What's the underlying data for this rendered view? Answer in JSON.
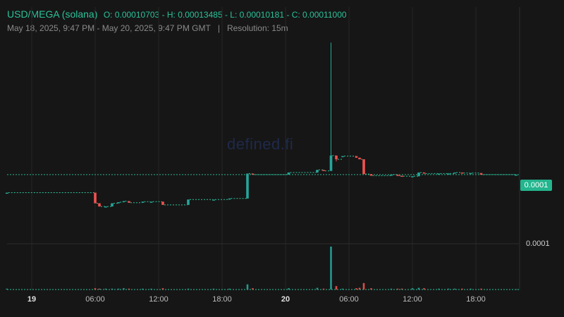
{
  "header": {
    "pair": "USD/MEGA (solana)",
    "ohlc": "O: 0.00010703 - H: 0.00013485 - L: 0.00010181 - C: 0.00011000",
    "range": "May 18, 2025, 9:47 PM - May 20, 2025, 9:47 PM GMT",
    "separator": "|",
    "resolution": "Resolution: 15m"
  },
  "watermark": "defined.fi",
  "colors": {
    "up": "#26a69a",
    "down": "#ef5350",
    "accent": "#2bc29a",
    "background": "#161616",
    "grid": "#2a2a2a"
  },
  "chart_data": {
    "type": "candlestick",
    "x_axis_ticks": [
      {
        "label": "19",
        "hour": 0,
        "bold": true
      },
      {
        "label": "06:00",
        "hour": 6
      },
      {
        "label": "12:00",
        "hour": 12
      },
      {
        "label": "18:00",
        "hour": 18
      },
      {
        "label": "20",
        "hour": 24,
        "bold": true
      },
      {
        "label": "06:00",
        "hour": 30
      },
      {
        "label": "12:00",
        "hour": 36
      },
      {
        "label": "18:00",
        "hour": 42
      }
    ],
    "x_range_hours": [
      -2.35,
      46.0
    ],
    "y_range": [
      9.75e-05,
      0.0001355
    ],
    "price_labels": [
      {
        "text": "0.0001",
        "value": 0.00011,
        "badge": true
      },
      {
        "text": "0.0001",
        "value": 0.0001045,
        "badge": false
      }
    ],
    "last_price": 0.00011,
    "volume_max": 1,
    "candles": [
      {
        "h": -2.35,
        "o": 0.0001066,
        "c": 0.0001066,
        "hi": 0.0001066,
        "lo": 0.0001066,
        "v": 0.02
      },
      {
        "h": 6.0,
        "o": 0.0001066,
        "c": 0.0001046,
        "hi": 0.0001066,
        "lo": 0.0001046,
        "v": 0.03
      },
      {
        "h": 6.4,
        "o": 0.0001046,
        "c": 0.000104,
        "hi": 0.0001046,
        "lo": 0.000104,
        "v": 0.02
      },
      {
        "h": 7.0,
        "o": 0.000104,
        "c": 0.000104,
        "hi": 0.000104,
        "lo": 0.000104,
        "v": 0.02
      },
      {
        "h": 7.6,
        "o": 0.000104,
        "c": 0.0001046,
        "hi": 0.0001046,
        "lo": 0.000104,
        "v": 0.02
      },
      {
        "h": 8.2,
        "o": 0.0001046,
        "c": 0.0001048,
        "hi": 0.0001048,
        "lo": 0.0001046,
        "v": 0.02
      },
      {
        "h": 8.7,
        "o": 0.0001048,
        "c": 0.000105,
        "hi": 0.000105,
        "lo": 0.0001048,
        "v": 0.03
      },
      {
        "h": 9.2,
        "o": 0.000105,
        "c": 0.0001047,
        "hi": 0.000105,
        "lo": 0.0001047,
        "v": 0.02
      },
      {
        "h": 10.5,
        "o": 0.0001047,
        "c": 0.0001049,
        "hi": 0.0001049,
        "lo": 0.0001047,
        "v": 0.02
      },
      {
        "h": 11.3,
        "o": 0.0001049,
        "c": 0.0001049,
        "hi": 0.0001049,
        "lo": 0.0001049,
        "v": 0.02
      },
      {
        "h": 12.4,
        "o": 0.0001049,
        "c": 0.0001043,
        "hi": 0.0001049,
        "lo": 0.0001043,
        "v": 0.03
      },
      {
        "h": 14.8,
        "o": 0.0001043,
        "c": 0.0001053,
        "hi": 0.0001053,
        "lo": 0.0001043,
        "v": 0.02
      },
      {
        "h": 17.2,
        "o": 0.0001053,
        "c": 0.0001053,
        "hi": 0.0001053,
        "lo": 0.0001053,
        "v": 0.02
      },
      {
        "h": 18.7,
        "o": 0.0001053,
        "c": 0.0001055,
        "hi": 0.0001055,
        "lo": 0.0001053,
        "v": 0.02
      },
      {
        "h": 20.4,
        "o": 0.0001055,
        "c": 0.0001102,
        "hi": 0.0001102,
        "lo": 0.0001055,
        "v": 0.12
      },
      {
        "h": 20.9,
        "o": 0.0001102,
        "c": 0.00011,
        "hi": 0.0001102,
        "lo": 0.00011,
        "v": 0.03
      },
      {
        "h": 24.3,
        "o": 0.00011,
        "c": 0.0001104,
        "hi": 0.0001104,
        "lo": 0.00011,
        "v": 0.03
      },
      {
        "h": 27.0,
        "o": 0.0001104,
        "c": 0.0001109,
        "hi": 0.0001109,
        "lo": 0.0001104,
        "v": 0.04
      },
      {
        "h": 27.6,
        "o": 0.0001109,
        "c": 0.0001107,
        "hi": 0.0001109,
        "lo": 0.0001107,
        "v": 0.02
      },
      {
        "h": 28.3,
        "o": 0.0001107,
        "c": 0.0001136,
        "hi": 0.0001349,
        "lo": 0.0001107,
        "v": 1.0
      },
      {
        "h": 28.8,
        "o": 0.0001136,
        "c": 0.0001129,
        "hi": 0.0001136,
        "lo": 0.0001125,
        "v": 0.08
      },
      {
        "h": 29.4,
        "o": 0.0001135,
        "c": 0.0001135,
        "hi": 0.0001135,
        "lo": 0.0001135,
        "v": 0.02
      },
      {
        "h": 30.7,
        "o": 0.0001135,
        "c": 0.0001132,
        "hi": 0.0001135,
        "lo": 0.0001132,
        "v": 0.03
      },
      {
        "h": 31.0,
        "o": 0.0001132,
        "c": 0.0001129,
        "hi": 0.0001132,
        "lo": 0.0001129,
        "v": 0.04
      },
      {
        "h": 31.4,
        "o": 0.0001129,
        "c": 0.0001101,
        "hi": 0.0001129,
        "lo": 0.0001101,
        "v": 0.15
      },
      {
        "h": 32.1,
        "o": 0.0001101,
        "c": 0.0001098,
        "hi": 0.0001101,
        "lo": 0.0001098,
        "v": 0.03
      },
      {
        "h": 34.0,
        "o": 0.0001098,
        "c": 0.00011,
        "hi": 0.00011,
        "lo": 0.0001098,
        "v": 0.02
      },
      {
        "h": 34.6,
        "o": 0.00011,
        "c": 0.0001098,
        "hi": 0.00011,
        "lo": 0.0001097,
        "v": 0.02
      },
      {
        "h": 35.0,
        "o": 0.0001098,
        "c": 0.0001097,
        "hi": 0.0001098,
        "lo": 0.0001097,
        "v": 0.02
      },
      {
        "h": 36.0,
        "o": 0.0001097,
        "c": 0.0001097,
        "hi": 0.0001097,
        "lo": 0.0001096,
        "v": 0.03
      },
      {
        "h": 36.6,
        "o": 0.0001097,
        "c": 0.0001104,
        "hi": 0.0001104,
        "lo": 0.0001097,
        "v": 0.04
      },
      {
        "h": 37.1,
        "o": 0.0001104,
        "c": 0.0001102,
        "hi": 0.0001104,
        "lo": 0.0001102,
        "v": 0.03
      },
      {
        "h": 38.5,
        "o": 0.0001102,
        "c": 0.0001102,
        "hi": 0.0001102,
        "lo": 0.0001102,
        "v": 0.02
      },
      {
        "h": 39.4,
        "o": 0.0001102,
        "c": 0.0001102,
        "hi": 0.0001103,
        "lo": 0.0001102,
        "v": 0.02
      },
      {
        "h": 40.0,
        "o": 0.0001102,
        "c": 0.0001104,
        "hi": 0.0001104,
        "lo": 0.0001102,
        "v": 0.02
      },
      {
        "h": 40.7,
        "o": 0.0001104,
        "c": 0.0001103,
        "hi": 0.0001104,
        "lo": 0.0001103,
        "v": 0.02
      },
      {
        "h": 41.5,
        "o": 0.0001103,
        "c": 0.0001103,
        "hi": 0.0001103,
        "lo": 0.0001103,
        "v": 0.02
      },
      {
        "h": 42.5,
        "o": 0.0001103,
        "c": 0.00011,
        "hi": 0.0001103,
        "lo": 0.00011,
        "v": 0.02
      },
      {
        "h": 45.8,
        "o": 0.00011,
        "c": 0.00011,
        "hi": 0.00011,
        "lo": 0.00011,
        "v": 0.01
      }
    ]
  }
}
